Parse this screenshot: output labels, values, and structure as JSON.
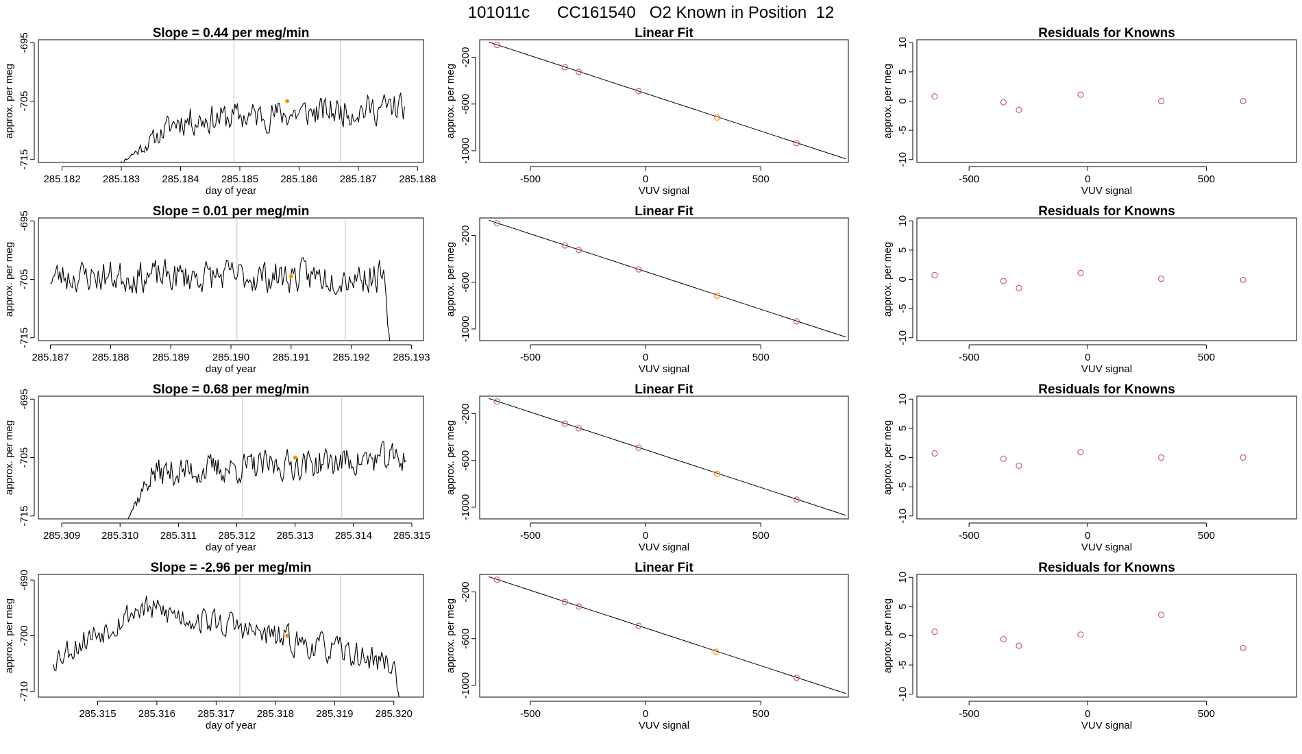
{
  "figure_title": "101011c      CC161540   O2 Known in Position  12",
  "colors": {
    "trace": "#000000",
    "marker_red": "#cd5c5c",
    "marker_orange": "#ff8c00",
    "vline": "#bfbfbf",
    "fit_line": "#000000"
  },
  "chart_data": [
    {
      "type": "line",
      "row": 1,
      "panel": "timeseries",
      "title": "Slope =  0.44  per meg/min",
      "xlabel": "day of year",
      "ylabel": "approx. per meg",
      "xlim": [
        285.1816,
        285.1881
      ],
      "ylim": [
        -715.5,
        -694.5
      ],
      "xticks": [
        285.182,
        285.183,
        285.184,
        285.185,
        285.186,
        285.187,
        285.188
      ],
      "xtick_labels": [
        "285.182",
        "285.183",
        "285.184",
        "285.185",
        "285.186",
        "285.187",
        "285.188"
      ],
      "yticks": [
        -715,
        -705,
        -695
      ],
      "ytick_labels": [
        "-715",
        "-705",
        "-695"
      ],
      "vlines": [
        285.1849,
        285.1867
      ],
      "marker": {
        "x": 285.1858,
        "y": -705
      },
      "trace": {
        "start": 285.18285,
        "end": 285.18778,
        "base": -707.5,
        "amp": 3.5,
        "n": 230,
        "seed": 11,
        "ramp_from": -716.5,
        "ramp_len": 0.0011,
        "drift": 3.0
      }
    },
    {
      "type": "scatter",
      "row": 1,
      "panel": "fit",
      "title": "Linear Fit",
      "xlabel": "VUV signal",
      "ylabel": "approx. per meg",
      "xlim": [
        -720,
        880
      ],
      "ylim": [
        -1100,
        -50
      ],
      "xticks": [
        -500,
        0,
        500
      ],
      "xtick_labels": [
        "-500",
        "0",
        "500"
      ],
      "yticks": [
        -1000,
        -600,
        -200
      ],
      "ytick_labels": [
        "-1000",
        "-600",
        "-200"
      ],
      "line": [
        [
          -680,
          -70
        ],
        [
          870,
          -1070
        ]
      ],
      "points": [
        {
          "x": -645,
          "y": -95,
          "color": "red"
        },
        {
          "x": -350,
          "y": -285,
          "color": "red"
        },
        {
          "x": -290,
          "y": -325,
          "color": "red"
        },
        {
          "x": -30,
          "y": -490,
          "color": "red"
        },
        {
          "x": 310,
          "y": -715,
          "color": "orange"
        },
        {
          "x": 655,
          "y": -935,
          "color": "red"
        }
      ]
    },
    {
      "type": "scatter",
      "row": 1,
      "panel": "residuals",
      "title": "Residuals for Knowns",
      "xlabel": "VUV signal",
      "ylabel": "approx. per meg",
      "xlim": [
        -720,
        880
      ],
      "ylim": [
        -10.5,
        10.5
      ],
      "xticks": [
        -500,
        0,
        500
      ],
      "xtick_labels": [
        "-500",
        "0",
        "500"
      ],
      "yticks": [
        -10,
        -5,
        0,
        5,
        10
      ],
      "ytick_labels": [
        "-10",
        "-5",
        "0",
        "5",
        "10"
      ],
      "points": [
        {
          "x": -645,
          "y": 0.8,
          "color": "red"
        },
        {
          "x": -355,
          "y": -0.2,
          "color": "red"
        },
        {
          "x": -290,
          "y": -1.5,
          "color": "red"
        },
        {
          "x": -30,
          "y": 1.1,
          "color": "red"
        },
        {
          "x": 310,
          "y": 0.0,
          "color": "red"
        },
        {
          "x": 655,
          "y": 0.0,
          "color": "red"
        }
      ]
    },
    {
      "type": "line",
      "row": 2,
      "panel": "timeseries",
      "title": "Slope =  0.01  per meg/min",
      "xlabel": "day of year",
      "ylabel": "approx. per meg",
      "xlim": [
        285.1868,
        285.1932
      ],
      "ylim": [
        -715.5,
        -694.5
      ],
      "xticks": [
        285.187,
        285.188,
        285.189,
        285.19,
        285.191,
        285.192,
        285.193
      ],
      "xtick_labels": [
        "285.187",
        "285.188",
        "285.189",
        "285.190",
        "285.191",
        "285.192",
        "285.193"
      ],
      "yticks": [
        -715,
        -705,
        -695
      ],
      "ytick_labels": [
        "-715",
        "-705",
        "-695"
      ],
      "vlines": [
        285.1901,
        285.1919
      ],
      "marker": {
        "x": 285.191,
        "y": -704.5
      },
      "trace": {
        "start": 285.187,
        "end": 285.19265,
        "base": -704.5,
        "amp": 3.8,
        "n": 250,
        "seed": 23,
        "drop_len": 0.00012,
        "drop_to": -717,
        "drift": 0
      }
    },
    {
      "type": "scatter",
      "row": 2,
      "panel": "fit",
      "title": "Linear Fit",
      "xlabel": "VUV signal",
      "ylabel": "approx. per meg",
      "xlim": [
        -720,
        880
      ],
      "ylim": [
        -1100,
        -50
      ],
      "xticks": [
        -500,
        0,
        500
      ],
      "xtick_labels": [
        "-500",
        "0",
        "500"
      ],
      "yticks": [
        -1000,
        -600,
        -200
      ],
      "ytick_labels": [
        "-1000",
        "-600",
        "-200"
      ],
      "line": [
        [
          -680,
          -70
        ],
        [
          870,
          -1070
        ]
      ],
      "points": [
        {
          "x": -645,
          "y": -95,
          "color": "red"
        },
        {
          "x": -350,
          "y": -285,
          "color": "red"
        },
        {
          "x": -290,
          "y": -325,
          "color": "red"
        },
        {
          "x": -30,
          "y": -490,
          "color": "red"
        },
        {
          "x": 310,
          "y": -715,
          "color": "orange"
        },
        {
          "x": 655,
          "y": -935,
          "color": "red"
        }
      ]
    },
    {
      "type": "scatter",
      "row": 2,
      "panel": "residuals",
      "title": "Residuals for Knowns",
      "xlabel": "VUV signal",
      "ylabel": "approx. per meg",
      "xlim": [
        -720,
        880
      ],
      "ylim": [
        -10.5,
        10.5
      ],
      "xticks": [
        -500,
        0,
        500
      ],
      "xtick_labels": [
        "-500",
        "0",
        "500"
      ],
      "yticks": [
        -10,
        -5,
        0,
        5,
        10
      ],
      "ytick_labels": [
        "-10",
        "-5",
        "0",
        "5",
        "10"
      ],
      "points": [
        {
          "x": -645,
          "y": 0.7,
          "color": "red"
        },
        {
          "x": -355,
          "y": -0.3,
          "color": "red"
        },
        {
          "x": -290,
          "y": -1.5,
          "color": "red"
        },
        {
          "x": -30,
          "y": 1.1,
          "color": "red"
        },
        {
          "x": 310,
          "y": 0.1,
          "color": "red"
        },
        {
          "x": 655,
          "y": -0.1,
          "color": "red"
        }
      ]
    },
    {
      "type": "line",
      "row": 3,
      "panel": "timeseries",
      "title": "Slope =  0.68  per meg/min",
      "xlabel": "day of year",
      "ylabel": "approx. per meg",
      "xlim": [
        285.3086,
        285.3152
      ],
      "ylim": [
        -715.5,
        -694.5
      ],
      "xticks": [
        285.309,
        285.31,
        285.311,
        285.312,
        285.313,
        285.314,
        285.315
      ],
      "xtick_labels": [
        "285.309",
        "285.310",
        "285.311",
        "285.312",
        "285.313",
        "285.314",
        "285.315"
      ],
      "yticks": [
        -715,
        -705,
        -695
      ],
      "ytick_labels": [
        "-715",
        "-705",
        "-695"
      ],
      "vlines": [
        285.3121,
        285.3138
      ],
      "marker": {
        "x": 285.313,
        "y": -705
      },
      "trace": {
        "start": 285.31005,
        "end": 285.3149,
        "base": -706.5,
        "amp": 3.5,
        "n": 230,
        "seed": 37,
        "ramp_from": -716.5,
        "ramp_len": 0.0005,
        "drift": 3.0
      }
    },
    {
      "type": "scatter",
      "row": 3,
      "panel": "fit",
      "title": "Linear Fit",
      "xlabel": "VUV signal",
      "ylabel": "approx. per meg",
      "xlim": [
        -720,
        880
      ],
      "ylim": [
        -1100,
        -50
      ],
      "xticks": [
        -500,
        0,
        500
      ],
      "xtick_labels": [
        "-500",
        "0",
        "500"
      ],
      "yticks": [
        -1000,
        -600,
        -200
      ],
      "ytick_labels": [
        "-1000",
        "-600",
        "-200"
      ],
      "line": [
        [
          -680,
          -70
        ],
        [
          870,
          -1070
        ]
      ],
      "points": [
        {
          "x": -645,
          "y": -95,
          "color": "red"
        },
        {
          "x": -350,
          "y": -285,
          "color": "red"
        },
        {
          "x": -290,
          "y": -325,
          "color": "red"
        },
        {
          "x": -30,
          "y": -490,
          "color": "red"
        },
        {
          "x": 310,
          "y": -715,
          "color": "orange"
        },
        {
          "x": 655,
          "y": -935,
          "color": "red"
        }
      ]
    },
    {
      "type": "scatter",
      "row": 3,
      "panel": "residuals",
      "title": "Residuals for Knowns",
      "xlabel": "VUV signal",
      "ylabel": "approx. per meg",
      "xlim": [
        -720,
        880
      ],
      "ylim": [
        -10.5,
        10.5
      ],
      "xticks": [
        -500,
        0,
        500
      ],
      "xtick_labels": [
        "-500",
        "0",
        "500"
      ],
      "yticks": [
        -10,
        -5,
        0,
        5,
        10
      ],
      "ytick_labels": [
        "-10",
        "-5",
        "0",
        "5",
        "10"
      ],
      "points": [
        {
          "x": -645,
          "y": 0.7,
          "color": "red"
        },
        {
          "x": -355,
          "y": -0.2,
          "color": "red"
        },
        {
          "x": -290,
          "y": -1.4,
          "color": "red"
        },
        {
          "x": -30,
          "y": 0.9,
          "color": "red"
        },
        {
          "x": 310,
          "y": 0.0,
          "color": "red"
        },
        {
          "x": 655,
          "y": 0.0,
          "color": "red"
        }
      ]
    },
    {
      "type": "line",
      "row": 4,
      "panel": "timeseries",
      "title": "Slope =  -2.96  per meg/min",
      "xlabel": "day of year",
      "ylabel": "approx. per meg",
      "xlim": [
        285.314,
        285.3205
      ],
      "ylim": [
        -711,
        -689
      ],
      "xticks": [
        285.315,
        285.316,
        285.317,
        285.318,
        285.319,
        285.32
      ],
      "xtick_labels": [
        "285.315",
        "285.316",
        "285.317",
        "285.318",
        "285.319",
        "285.320"
      ],
      "yticks": [
        -710,
        -700,
        -690
      ],
      "ytick_labels": [
        "-710",
        "-700",
        "-690"
      ],
      "vlines": [
        285.3174,
        285.3191
      ],
      "marker": {
        "x": 285.3182,
        "y": -700
      },
      "trace": {
        "start": 285.31425,
        "end": 285.3201,
        "base": -700,
        "amp": 3.5,
        "n": 250,
        "seed": 53,
        "shape": "hump",
        "drop_len": 0.0001,
        "drop_to": -712
      }
    },
    {
      "type": "scatter",
      "row": 4,
      "panel": "fit",
      "title": "Linear Fit",
      "xlabel": "VUV signal",
      "ylabel": "approx. per meg",
      "xlim": [
        -720,
        880
      ],
      "ylim": [
        -1100,
        -50
      ],
      "xticks": [
        -500,
        0,
        500
      ],
      "xtick_labels": [
        "-500",
        "0",
        "500"
      ],
      "yticks": [
        -1000,
        -600,
        -200
      ],
      "ytick_labels": [
        "-1000",
        "-600",
        "-200"
      ],
      "line": [
        [
          -680,
          -70
        ],
        [
          870,
          -1070
        ]
      ],
      "points": [
        {
          "x": -645,
          "y": -95,
          "color": "red"
        },
        {
          "x": -350,
          "y": -285,
          "color": "red"
        },
        {
          "x": -290,
          "y": -325,
          "color": "red"
        },
        {
          "x": -30,
          "y": -490,
          "color": "red"
        },
        {
          "x": 305,
          "y": -712,
          "color": "orange"
        },
        {
          "x": 655,
          "y": -935,
          "color": "red"
        }
      ]
    },
    {
      "type": "scatter",
      "row": 4,
      "panel": "residuals",
      "title": "Residuals for Knowns",
      "xlabel": "VUV signal",
      "ylabel": "approx. per meg",
      "xlim": [
        -720,
        880
      ],
      "ylim": [
        -10.5,
        10.5
      ],
      "xticks": [
        -500,
        0,
        500
      ],
      "xtick_labels": [
        "-500",
        "0",
        "500"
      ],
      "yticks": [
        -10,
        -5,
        0,
        5,
        10
      ],
      "ytick_labels": [
        "-10",
        "-5",
        "0",
        "5",
        "10"
      ],
      "points": [
        {
          "x": -645,
          "y": 0.7,
          "color": "red"
        },
        {
          "x": -355,
          "y": -0.6,
          "color": "red"
        },
        {
          "x": -290,
          "y": -1.7,
          "color": "red"
        },
        {
          "x": -30,
          "y": 0.2,
          "color": "red"
        },
        {
          "x": 310,
          "y": 3.6,
          "color": "red"
        },
        {
          "x": 655,
          "y": -2.1,
          "color": "red"
        }
      ]
    }
  ]
}
